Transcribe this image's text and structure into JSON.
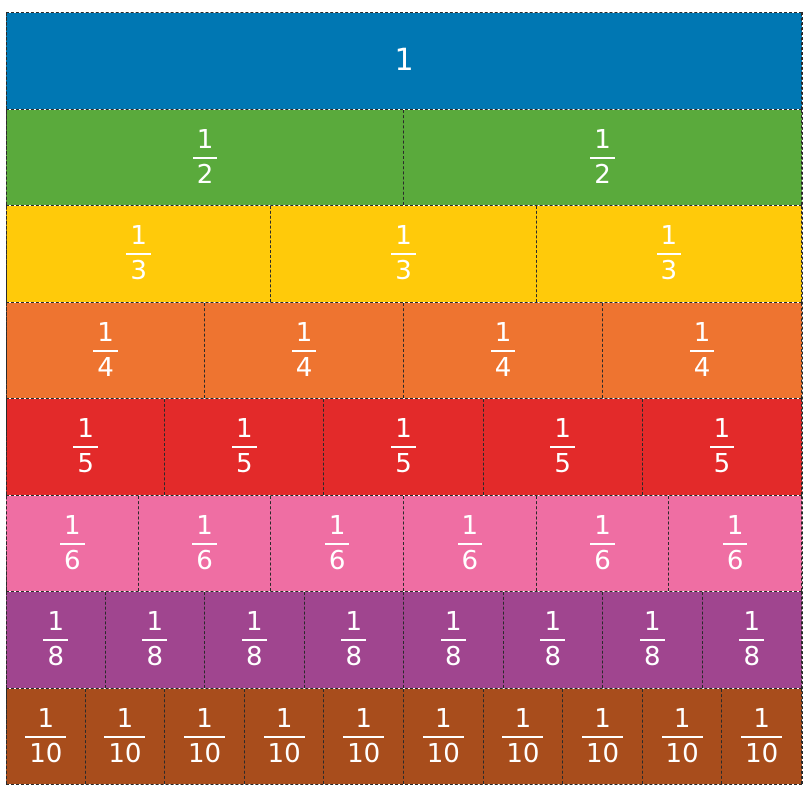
{
  "rows": [
    {
      "label_type": "whole",
      "count": 1,
      "color": "#0077b3",
      "numerator": "1",
      "denominator": ""
    },
    {
      "label_type": "fraction",
      "count": 2,
      "color": "#5aaa3c",
      "numerator": "1",
      "denominator": "2"
    },
    {
      "label_type": "fraction",
      "count": 3,
      "color": "#ffca0a",
      "numerator": "1",
      "denominator": "3"
    },
    {
      "label_type": "fraction",
      "count": 4,
      "color": "#ee7430",
      "numerator": "1",
      "denominator": "4"
    },
    {
      "label_type": "fraction",
      "count": 5,
      "color": "#e32a2a",
      "numerator": "1",
      "denominator": "5"
    },
    {
      "label_type": "fraction",
      "count": 6,
      "color": "#ef6ea3",
      "numerator": "1",
      "denominator": "6"
    },
    {
      "label_type": "fraction",
      "count": 8,
      "color": "#a0458f",
      "numerator": "1",
      "denominator": "8"
    },
    {
      "label_type": "fraction",
      "count": 10,
      "color": "#a84d1c",
      "numerator": "1",
      "denominator": "10"
    }
  ]
}
